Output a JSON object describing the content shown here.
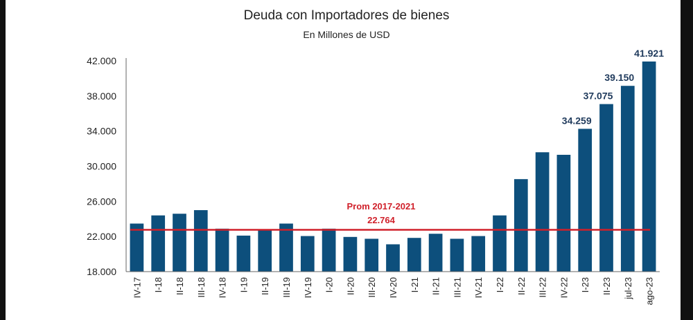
{
  "chart_data": {
    "type": "bar",
    "title": "Deuda con Importadores de bienes",
    "subtitle": "En Millones de USD",
    "xlabel": "",
    "ylabel": "",
    "ylim": [
      18000,
      42000
    ],
    "yticks": [
      18000,
      22000,
      26000,
      30000,
      34000,
      38000,
      42000
    ],
    "ytick_labels": [
      "18.000",
      "22.000",
      "26.000",
      "30.000",
      "34.000",
      "38.000",
      "42.000"
    ],
    "categories": [
      "IV-17",
      "I-18",
      "II-18",
      "III-18",
      "IV-18",
      "I-19",
      "II-19",
      "III-19",
      "IV-19",
      "I-20",
      "II-20",
      "III-20",
      "IV-20",
      "I-21",
      "II-21",
      "III-21",
      "IV-21",
      "I-22",
      "II-22",
      "III-22",
      "IV-22",
      "I-23",
      "II-23",
      "jul-23",
      "ago-23"
    ],
    "values": [
      23470,
      24400,
      24590,
      25000,
      22890,
      22100,
      22730,
      23470,
      22050,
      22890,
      21950,
      21740,
      21110,
      21840,
      22310,
      21740,
      22050,
      24400,
      28530,
      31590,
      31300,
      34259,
      37075,
      39150,
      41921
    ],
    "data_labels": {
      "21": "34.259",
      "22": "37.075",
      "23": "39.150",
      "24": "41.921"
    },
    "reference_line": {
      "value": 22764,
      "label_line1": "Prom 2017-2021",
      "label_line2": "22.764"
    },
    "colors": {
      "bar": "#0d4f7c",
      "reference": "#d0202a",
      "label": "#1f3a5c"
    },
    "grid": false,
    "legend": "none"
  }
}
